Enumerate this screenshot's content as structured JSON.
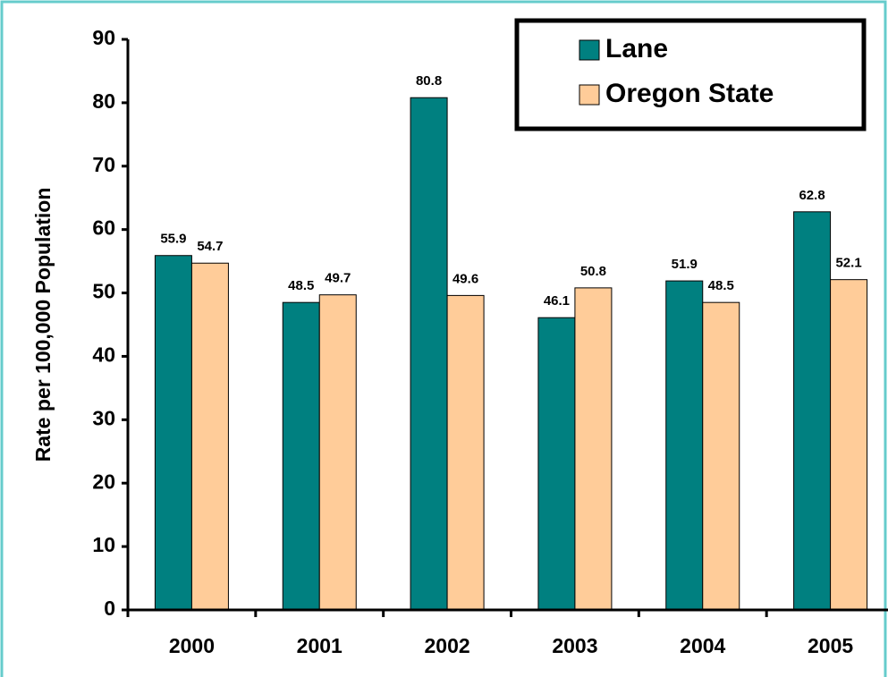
{
  "chart_data": {
    "type": "bar",
    "y_label": "Rate per 100,000 Population",
    "categories": [
      "2000",
      "2001",
      "2002",
      "2003",
      "2004",
      "2005"
    ],
    "series": [
      {
        "name": "Lane",
        "color": "#008080",
        "values": [
          55.9,
          48.5,
          80.8,
          46.1,
          51.9,
          62.8
        ]
      },
      {
        "name": "Oregon State",
        "color": "#ffcc99",
        "values": [
          54.7,
          49.7,
          49.6,
          50.8,
          48.5,
          52.1
        ]
      }
    ],
    "ylim": [
      0,
      90
    ],
    "yticks": [
      0,
      10,
      20,
      30,
      40,
      50,
      60,
      70,
      80,
      90
    ],
    "legend": "upper right"
  }
}
